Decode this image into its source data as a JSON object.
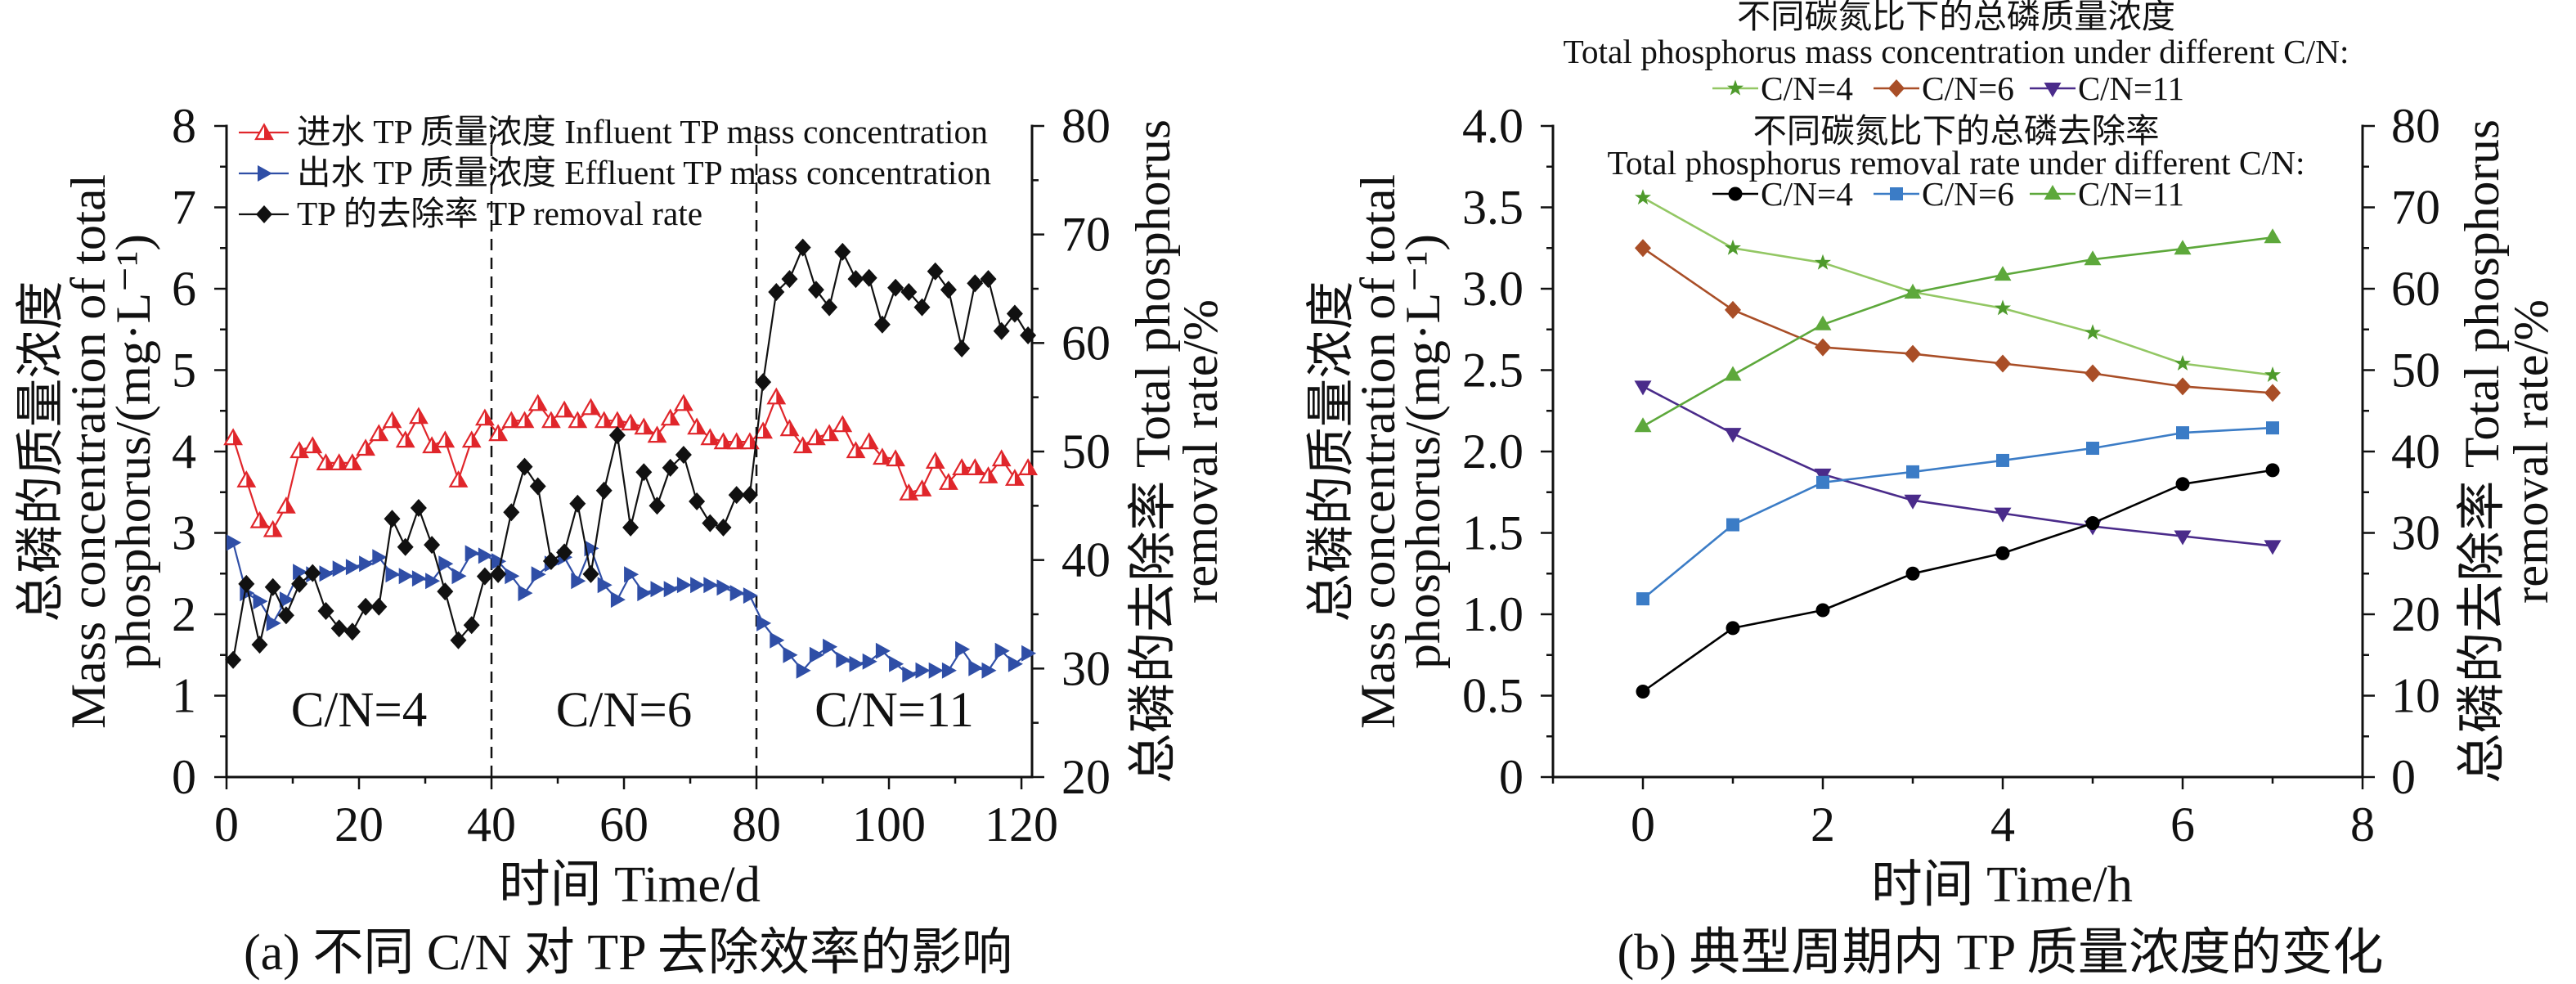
{
  "chart_data": [
    {
      "panel": "a",
      "type": "line",
      "caption": "(a) 不同 C/N 对 TP 去除效率的影响",
      "xlabel": "时间 Time/d",
      "ylabel_lines": [
        "总磷的质量浓度",
        "Mass concentration of total",
        "phosphorus/(mg·L⁻¹)"
      ],
      "y2label_lines": [
        "总磷的去除率 Total phosphorus",
        "removal rate/%"
      ],
      "xlim": [
        0,
        121.6
      ],
      "ylim": [
        0,
        8
      ],
      "y2lim": [
        20,
        80
      ],
      "xticks": [
        0,
        20,
        40,
        60,
        80,
        100,
        120
      ],
      "xtick_labels": [
        "0",
        "20",
        "40",
        "60",
        "80",
        "100",
        "120"
      ],
      "xminor_step": 10,
      "yticks": [
        0,
        1,
        2,
        3,
        4,
        5,
        6,
        7,
        8
      ],
      "ytick_labels": [
        "0",
        "1",
        "2",
        "3",
        "4",
        "5",
        "6",
        "7",
        "8"
      ],
      "yminor_step": 0.5,
      "y2ticks": [
        20,
        30,
        40,
        50,
        60,
        70,
        80
      ],
      "y2tick_labels": [
        "20",
        "30",
        "40",
        "50",
        "60",
        "70",
        "80"
      ],
      "y2minor_step": 5,
      "grid": false,
      "legend_position": "top-left",
      "phase_boundaries": [
        40,
        80
      ],
      "phases": [
        {
          "label": "C/N=4",
          "start": 0,
          "end": 40
        },
        {
          "label": "C/N=6",
          "start": 40,
          "end": 80
        },
        {
          "label": "C/N=11",
          "start": 80,
          "end": 121.6
        }
      ],
      "x": [
        1,
        3,
        5,
        7,
        9,
        11,
        13,
        15,
        17,
        19,
        21,
        23,
        25,
        27,
        29,
        31,
        33,
        35,
        37,
        39,
        41,
        43,
        45,
        47,
        49,
        51,
        53,
        55,
        57,
        59,
        61,
        63,
        65,
        67,
        69,
        71,
        73,
        75,
        77,
        79,
        81,
        83,
        85,
        87,
        89,
        91,
        93,
        95,
        97,
        99,
        101,
        103,
        105,
        107,
        109,
        111,
        113,
        115,
        117,
        119,
        121
      ],
      "series": [
        {
          "key": "influent",
          "name": "进水 TP 质量浓度 Influent TP mass concentration",
          "axis": "left",
          "color": "#e0262b",
          "marker": "triangle-up-half-filled",
          "values": [
            4.17,
            3.65,
            3.15,
            3.04,
            3.33,
            4.01,
            4.07,
            3.86,
            3.86,
            3.86,
            4.04,
            4.22,
            4.38,
            4.14,
            4.43,
            4.07,
            4.14,
            3.65,
            4.14,
            4.41,
            4.22,
            4.38,
            4.38,
            4.59,
            4.38,
            4.51,
            4.38,
            4.54,
            4.38,
            4.38,
            4.35,
            4.3,
            4.2,
            4.41,
            4.59,
            4.3,
            4.17,
            4.12,
            4.12,
            4.12,
            4.25,
            4.67,
            4.28,
            4.07,
            4.17,
            4.22,
            4.33,
            4.01,
            4.12,
            3.93,
            3.91,
            3.49,
            3.54,
            3.88,
            3.62,
            3.8,
            3.8,
            3.7,
            3.91,
            3.67,
            3.8
          ]
        },
        {
          "key": "effluent",
          "name": "出水 TP 质量浓度 Effluent TP mass concentration",
          "axis": "left",
          "color": "#2f4ea6",
          "marker": "triangle-right",
          "values": [
            2.88,
            2.26,
            2.16,
            1.89,
            2.18,
            2.52,
            2.49,
            2.5,
            2.56,
            2.58,
            2.62,
            2.7,
            2.49,
            2.47,
            2.44,
            2.41,
            2.62,
            2.47,
            2.75,
            2.72,
            2.65,
            2.47,
            2.26,
            2.49,
            2.62,
            2.7,
            2.41,
            2.81,
            2.36,
            2.18,
            2.49,
            2.26,
            2.31,
            2.31,
            2.36,
            2.36,
            2.36,
            2.33,
            2.26,
            2.23,
            1.89,
            1.68,
            1.5,
            1.31,
            1.5,
            1.6,
            1.44,
            1.39,
            1.42,
            1.55,
            1.39,
            1.26,
            1.31,
            1.31,
            1.31,
            1.57,
            1.34,
            1.31,
            1.55,
            1.39,
            1.52
          ]
        },
        {
          "key": "removal",
          "name": "TP 的去除率 TP removal rate",
          "axis": "right",
          "color": "#111111",
          "marker": "diamond",
          "values": [
            30.8,
            37.8,
            32.2,
            37.5,
            34.9,
            37.8,
            38.8,
            35.3,
            33.7,
            33.4,
            35.7,
            35.7,
            43.8,
            41.2,
            44.8,
            41.4,
            37.1,
            32.6,
            34.0,
            38.5,
            38.7,
            44.4,
            48.6,
            46.8,
            39.9,
            40.7,
            45.2,
            38.7,
            46.4,
            51.5,
            43.0,
            48.1,
            45.0,
            48.5,
            49.7,
            45.4,
            43.4,
            43.0,
            46.0,
            46.0,
            56.4,
            64.7,
            65.9,
            68.8,
            64.9,
            63.3,
            68.4,
            65.9,
            66.0,
            61.7,
            65.1,
            64.7,
            63.3,
            66.6,
            64.9,
            59.5,
            65.5,
            65.9,
            61.1,
            62.7,
            60.7
          ]
        }
      ]
    },
    {
      "panel": "b",
      "type": "line",
      "caption": "(b) 典型周期内 TP 质量浓度的变化",
      "xlabel": "时间 Time/h",
      "ylabel_lines": [
        "总磷的质量浓度",
        "Mass concentration of total",
        "phosphorus/(mg·L⁻¹)"
      ],
      "y2label_lines": [
        "总磷的去除率 Total phosphorus",
        "removal rate/%"
      ],
      "xlim": [
        -1,
        8
      ],
      "ylim": [
        0,
        4
      ],
      "y2lim": [
        0,
        80
      ],
      "xticks": [
        0,
        2,
        4,
        6,
        8
      ],
      "xtick_labels": [
        "0",
        "2",
        "4",
        "6",
        "8"
      ],
      "xminor_step": 1,
      "yticks": [
        0,
        0.5,
        1,
        1.5,
        2,
        2.5,
        3,
        3.5,
        4
      ],
      "ytick_labels": [
        "0",
        "0.5",
        "1.0",
        "1.5",
        "2.0",
        "2.5",
        "3.0",
        "3.5",
        "4.0"
      ],
      "yminor_step": 0.25,
      "y2ticks": [
        0,
        10,
        20,
        30,
        40,
        50,
        60,
        70,
        80
      ],
      "y2tick_labels": [
        "0",
        "10",
        "20",
        "30",
        "40",
        "50",
        "60",
        "70",
        "80"
      ],
      "y2minor_step": 5,
      "grid": false,
      "legend_position": "top-center",
      "legend_groups": [
        {
          "title_zh": "不同碳氮比下的总磷质量浓度",
          "title_en": "Total phosphorus mass concentration under different C/N:",
          "series_indices": [
            0,
            1,
            2
          ]
        },
        {
          "title_zh": "不同碳氮比下的总磷去除率",
          "title_en": "Total phosphorus removal rate under different C/N:",
          "series_indices": [
            3,
            4,
            5
          ]
        }
      ],
      "x": [
        0,
        1,
        2,
        3,
        4,
        5,
        6,
        7
      ],
      "series": [
        {
          "key": "conc-cn4",
          "name": "C/N=4",
          "axis": "left",
          "color": "#93c764",
          "marker_color": "#4e9a2c",
          "marker": "star",
          "values": [
            3.56,
            3.25,
            3.16,
            2.98,
            2.88,
            2.73,
            2.54,
            2.47
          ]
        },
        {
          "key": "conc-cn6",
          "name": "C/N=6",
          "axis": "left",
          "color": "#a94e27",
          "marker": "diamond",
          "values": [
            3.25,
            2.87,
            2.64,
            2.6,
            2.54,
            2.48,
            2.4,
            2.36
          ]
        },
        {
          "key": "conc-cn11",
          "name": "C/N=11",
          "axis": "left",
          "color": "#4a2b8a",
          "marker": "triangle-down",
          "values": [
            2.4,
            2.11,
            1.86,
            1.7,
            1.62,
            1.54,
            1.48,
            1.42
          ]
        },
        {
          "key": "removal-cn4",
          "name": "C/N=4",
          "axis": "right",
          "color": "#000000",
          "marker": "circle",
          "values": [
            10.5,
            18.3,
            20.5,
            25.0,
            27.5,
            31.2,
            36.0,
            37.7
          ]
        },
        {
          "key": "removal-cn6",
          "name": "C/N=6",
          "axis": "right",
          "color": "#3b7cc6",
          "marker": "square",
          "values": [
            21.9,
            31.0,
            36.2,
            37.5,
            38.9,
            40.4,
            42.3,
            42.9
          ]
        },
        {
          "key": "removal-cn11",
          "name": "C/N=11",
          "axis": "right",
          "color": "#5da83b",
          "marker": "triangle-up",
          "values": [
            43.1,
            49.4,
            55.6,
            59.5,
            61.7,
            63.6,
            64.9,
            66.3
          ]
        }
      ]
    }
  ]
}
